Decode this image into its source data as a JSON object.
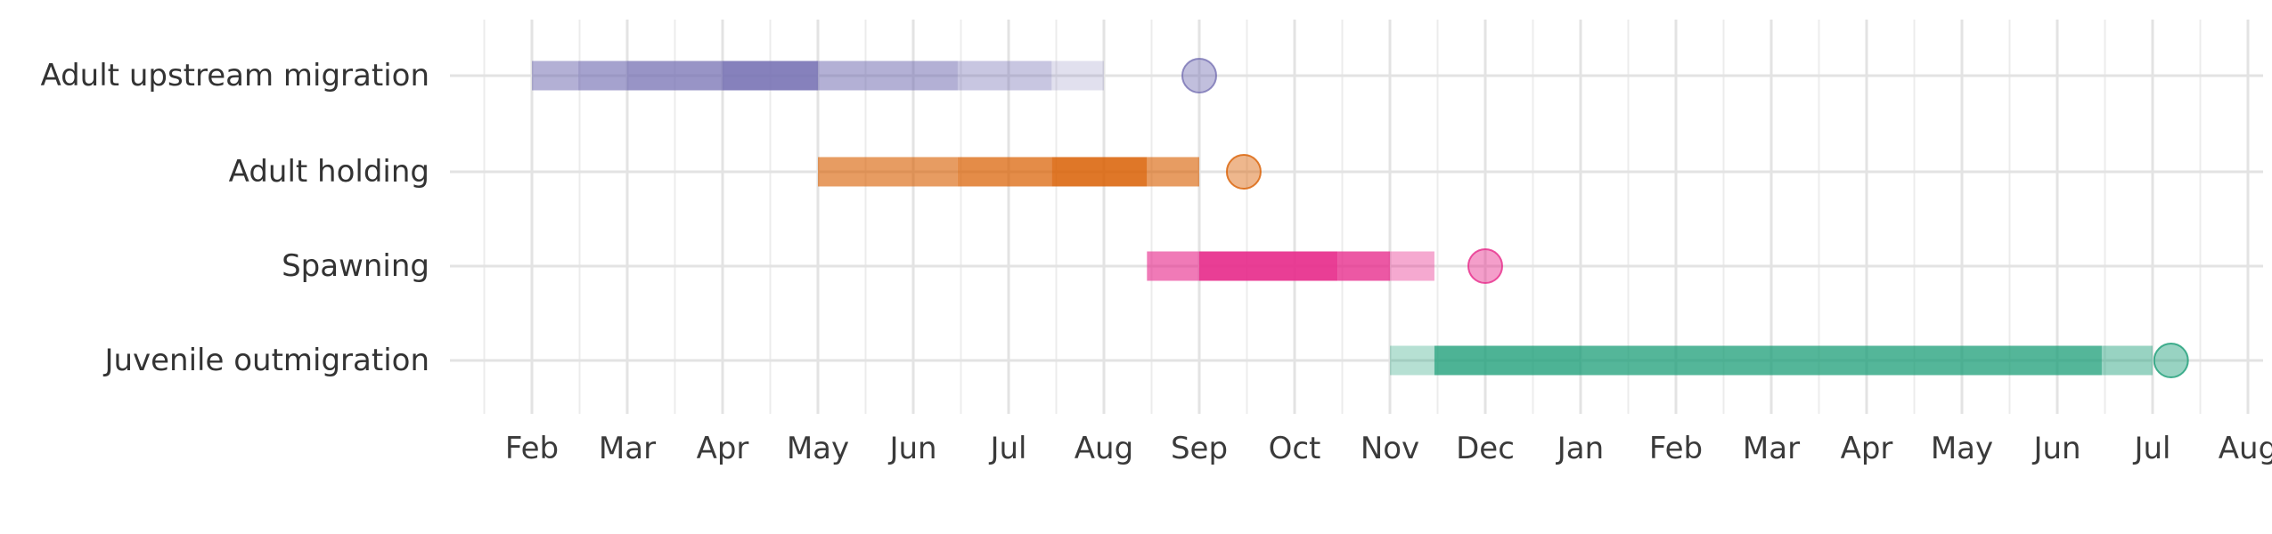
{
  "chart_data": {
    "type": "timeline",
    "x_unit": "month",
    "xlim": [
      "2020-01-15",
      "2021-08-01"
    ],
    "x_ticks": [
      {
        "date": "2020-02-01",
        "label": "Feb"
      },
      {
        "date": "2020-03-01",
        "label": "Mar"
      },
      {
        "date": "2020-04-01",
        "label": "Apr"
      },
      {
        "date": "2020-05-01",
        "label": "May"
      },
      {
        "date": "2020-06-01",
        "label": "Jun"
      },
      {
        "date": "2020-07-01",
        "label": "Jul"
      },
      {
        "date": "2020-08-01",
        "label": "Aug"
      },
      {
        "date": "2020-09-01",
        "label": "Sep"
      },
      {
        "date": "2020-10-01",
        "label": "Oct"
      },
      {
        "date": "2020-11-01",
        "label": "Nov"
      },
      {
        "date": "2020-12-01",
        "label": "Dec"
      },
      {
        "date": "2021-01-01",
        "label": "Jan"
      },
      {
        "date": "2021-02-01",
        "label": "Feb"
      },
      {
        "date": "2021-03-01",
        "label": "Mar"
      },
      {
        "date": "2021-04-01",
        "label": "Apr"
      },
      {
        "date": "2021-05-01",
        "label": "May"
      },
      {
        "date": "2021-06-01",
        "label": "Jun"
      },
      {
        "date": "2021-07-01",
        "label": "Jul"
      },
      {
        "date": "2021-08-01",
        "label": "Aug"
      }
    ],
    "grid": true,
    "legend": "none",
    "series": [
      {
        "name": "Adult upstream migration",
        "color": "#7570b3",
        "segments": [
          {
            "start": "2020-02-01",
            "end": "2020-02-15",
            "intensity": 0.55
          },
          {
            "start": "2020-02-15",
            "end": "2020-03-01",
            "intensity": 0.65
          },
          {
            "start": "2020-03-01",
            "end": "2020-04-01",
            "intensity": 0.75
          },
          {
            "start": "2020-04-01",
            "end": "2020-05-01",
            "intensity": 0.88
          },
          {
            "start": "2020-05-01",
            "end": "2020-06-15",
            "intensity": 0.55
          },
          {
            "start": "2020-06-15",
            "end": "2020-07-15",
            "intensity": 0.4
          },
          {
            "start": "2020-07-15",
            "end": "2020-08-01",
            "intensity": 0.22
          }
        ],
        "marker_date": "2020-09-01"
      },
      {
        "name": "Adult holding",
        "color": "#d95f02",
        "segments": [
          {
            "start": "2020-05-01",
            "end": "2020-06-15",
            "intensity": 0.62
          },
          {
            "start": "2020-06-15",
            "end": "2020-07-15",
            "intensity": 0.72
          },
          {
            "start": "2020-07-15",
            "end": "2020-08-15",
            "intensity": 0.85
          },
          {
            "start": "2020-08-15",
            "end": "2020-09-01",
            "intensity": 0.62
          }
        ],
        "marker_date": "2020-09-15"
      },
      {
        "name": "Spawning",
        "color": "#e7298a",
        "segments": [
          {
            "start": "2020-08-15",
            "end": "2020-09-01",
            "intensity": 0.62
          },
          {
            "start": "2020-09-01",
            "end": "2020-10-15",
            "intensity": 0.9
          },
          {
            "start": "2020-10-15",
            "end": "2020-11-01",
            "intensity": 0.78
          },
          {
            "start": "2020-11-01",
            "end": "2020-11-15",
            "intensity": 0.4
          }
        ],
        "marker_date": "2020-12-01"
      },
      {
        "name": "Juvenile outmigration",
        "color": "#1b9e77",
        "segments": [
          {
            "start": "2020-11-01",
            "end": "2020-11-15",
            "intensity": 0.32
          },
          {
            "start": "2020-11-15",
            "end": "2021-01-01",
            "intensity": 0.78
          },
          {
            "start": "2021-01-01",
            "end": "2021-06-15",
            "intensity": 0.75
          },
          {
            "start": "2021-06-15",
            "end": "2021-07-01",
            "intensity": 0.45
          }
        ],
        "marker_date": "2021-07-07"
      }
    ]
  }
}
